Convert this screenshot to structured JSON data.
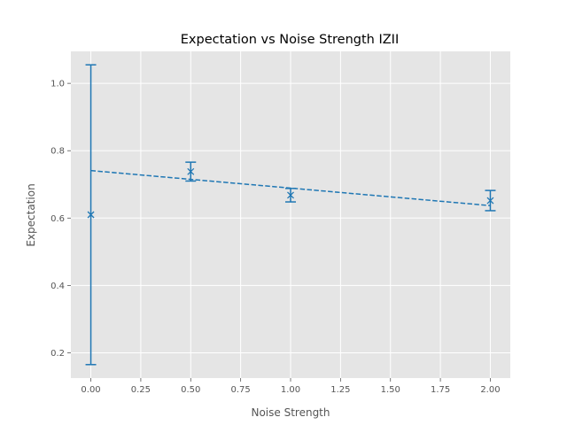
{
  "chart_data": {
    "type": "scatter",
    "title": "Expectation vs Noise Strength IZII",
    "xlabel": "Noise Strength",
    "ylabel": "Expectation",
    "xlim": [
      -0.1,
      2.1
    ],
    "ylim": [
      0.125,
      1.095
    ],
    "xticks": [
      "0.00",
      "0.25",
      "0.50",
      "0.75",
      "1.00",
      "1.25",
      "1.50",
      "1.75",
      "2.00"
    ],
    "yticks": [
      "0.2",
      "0.4",
      "0.6",
      "0.8",
      "1.0"
    ],
    "grid": true,
    "series": [
      {
        "marker": "x",
        "color": "#1f77b4",
        "x": [
          0.0,
          0.5,
          1.0,
          2.0
        ],
        "y": [
          0.61,
          0.738,
          0.668,
          0.652
        ],
        "yerr": [
          0.445,
          0.028,
          0.02,
          0.03
        ]
      },
      {
        "style": "dashed",
        "color": "#1f77b4",
        "x": [
          0.0,
          2.0
        ],
        "y": [
          0.741,
          0.637
        ]
      }
    ]
  }
}
